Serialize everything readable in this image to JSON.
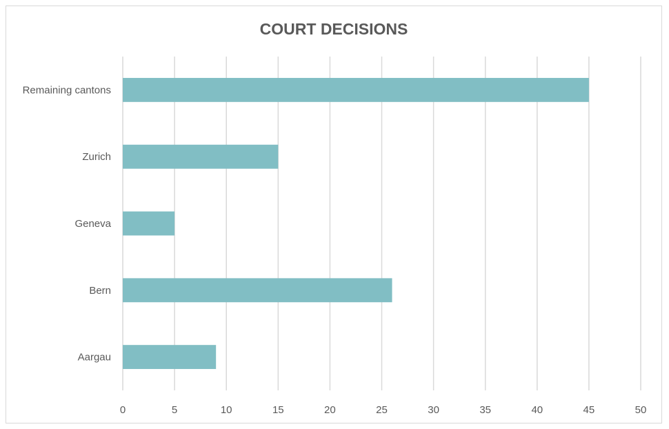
{
  "chart_data": {
    "type": "bar",
    "orientation": "horizontal",
    "title": "COURT DECISIONS",
    "xlabel": "",
    "ylabel": "",
    "categories": [
      "Aargau",
      "Bern",
      "Geneva",
      "Zurich",
      "Remaining cantons"
    ],
    "values": [
      9,
      26,
      5,
      15,
      45
    ],
    "xlim": [
      0,
      50
    ],
    "x_ticks": [
      0,
      5,
      10,
      15,
      20,
      25,
      30,
      35,
      40,
      45,
      50
    ],
    "grid": "vertical",
    "legend": "none",
    "colors": {
      "bar": "#81bec4",
      "grid": "#d9d9d9",
      "text": "#595959",
      "border": "#d9d9d9"
    }
  }
}
